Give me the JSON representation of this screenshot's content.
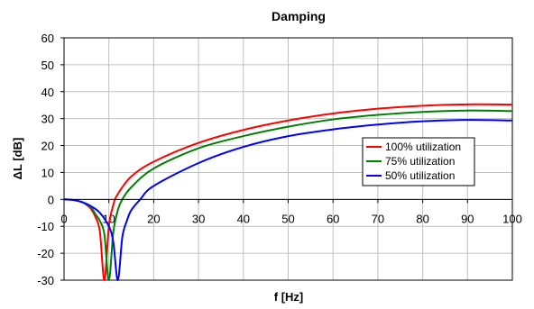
{
  "chart_data": {
    "type": "line",
    "title": "Damping",
    "xlabel": "f [Hz]",
    "ylabel": "ΔL [dB]",
    "xlim": [
      0,
      100
    ],
    "ylim": [
      -30,
      60
    ],
    "x_ticks": [
      "0",
      "10",
      "20",
      "30",
      "40",
      "50",
      "60",
      "70",
      "80",
      "90",
      "100"
    ],
    "y_ticks": [
      "60",
      "50",
      "40",
      "30",
      "20",
      "10",
      "0",
      "-10",
      "-20",
      "-30"
    ],
    "grid": true,
    "legend_position": "right",
    "series": [
      {
        "name": "100% utilization",
        "color": "#ff0000",
        "points": [
          [
            0,
            0
          ],
          [
            2,
            -0.2
          ],
          [
            4,
            -1
          ],
          [
            5,
            -2
          ],
          [
            6,
            -3.5
          ],
          [
            7,
            -6.5
          ],
          [
            8,
            -12
          ],
          [
            9,
            -30
          ],
          [
            10,
            -10
          ],
          [
            11,
            -2
          ],
          [
            12,
            2
          ],
          [
            15,
            8.5
          ],
          [
            20,
            14
          ],
          [
            30,
            21
          ],
          [
            40,
            25.8
          ],
          [
            50,
            29.3
          ],
          [
            60,
            31.9
          ],
          [
            70,
            33.7
          ],
          [
            80,
            34.8
          ],
          [
            90,
            35.3
          ],
          [
            100,
            35.2
          ]
        ]
      },
      {
        "name": "75% utilization",
        "color": "#008000",
        "points": [
          [
            0,
            0
          ],
          [
            2,
            -0.2
          ],
          [
            4,
            -1
          ],
          [
            6,
            -3
          ],
          [
            7,
            -5.5
          ],
          [
            8,
            -8
          ],
          [
            9,
            -13
          ],
          [
            10,
            -30
          ],
          [
            11,
            -12
          ],
          [
            12,
            -4
          ],
          [
            13,
            0
          ],
          [
            15,
            4.5
          ],
          [
            20,
            11.5
          ],
          [
            30,
            19
          ],
          [
            40,
            23.5
          ],
          [
            50,
            27
          ],
          [
            60,
            29.7
          ],
          [
            70,
            31.4
          ],
          [
            80,
            32.5
          ],
          [
            90,
            33
          ],
          [
            100,
            32.8
          ]
        ]
      },
      {
        "name": "50% utilization",
        "color": "#0000ff",
        "points": [
          [
            0,
            0
          ],
          [
            2,
            -0.2
          ],
          [
            4,
            -1
          ],
          [
            6,
            -2.5
          ],
          [
            8,
            -5
          ],
          [
            10,
            -10
          ],
          [
            11,
            -16
          ],
          [
            12,
            -30
          ],
          [
            13,
            -14
          ],
          [
            14,
            -8
          ],
          [
            15,
            -4
          ],
          [
            17,
            0
          ],
          [
            20,
            5
          ],
          [
            30,
            13.5
          ],
          [
            40,
            19.5
          ],
          [
            50,
            23.5
          ],
          [
            60,
            26
          ],
          [
            70,
            27.8
          ],
          [
            80,
            29
          ],
          [
            90,
            29.5
          ],
          [
            100,
            29.3
          ]
        ]
      }
    ]
  }
}
